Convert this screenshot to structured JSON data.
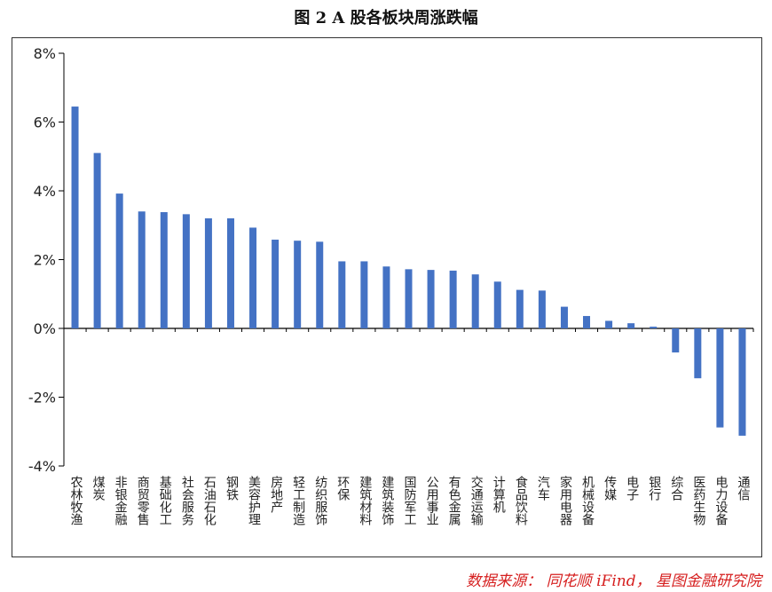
{
  "chart_data": {
    "type": "bar",
    "title": "图 2 A 股各板块周涨跌幅",
    "xlabel": "",
    "ylabel": "",
    "ylim": [
      -4,
      8
    ],
    "yticks": [
      "8%",
      "6%",
      "4%",
      "2%",
      "0%",
      "-2%",
      "-4%"
    ],
    "ytick_values": [
      8,
      6,
      4,
      2,
      0,
      -2,
      -4
    ],
    "grid": false,
    "legend": "none",
    "bar_color": "#4472c4",
    "categories": [
      "农林牧渔",
      "煤炭",
      "非银金融",
      "商贸零售",
      "基础化工",
      "社会服务",
      "石油石化",
      "钢铁",
      "美容护理",
      "房地产",
      "轻工制造",
      "纺织服饰",
      "环保",
      "建筑材料",
      "建筑装饰",
      "国防军工",
      "公用事业",
      "有色金属",
      "交通运输",
      "计算机",
      "食品饮料",
      "汽车",
      "家用电器",
      "机械设备",
      "传媒",
      "电子",
      "银行",
      "综合",
      "医药生物",
      "电力设备",
      "通信"
    ],
    "values": [
      6.45,
      5.1,
      3.92,
      3.4,
      3.38,
      3.32,
      3.2,
      3.2,
      2.93,
      2.58,
      2.55,
      2.52,
      1.95,
      1.95,
      1.8,
      1.72,
      1.7,
      1.68,
      1.57,
      1.36,
      1.12,
      1.1,
      0.63,
      0.36,
      0.22,
      0.15,
      0.05,
      -0.7,
      -1.45,
      -2.88,
      -3.12
    ]
  },
  "source": "数据来源： 同花顺 iFind， 星图金融研究院"
}
